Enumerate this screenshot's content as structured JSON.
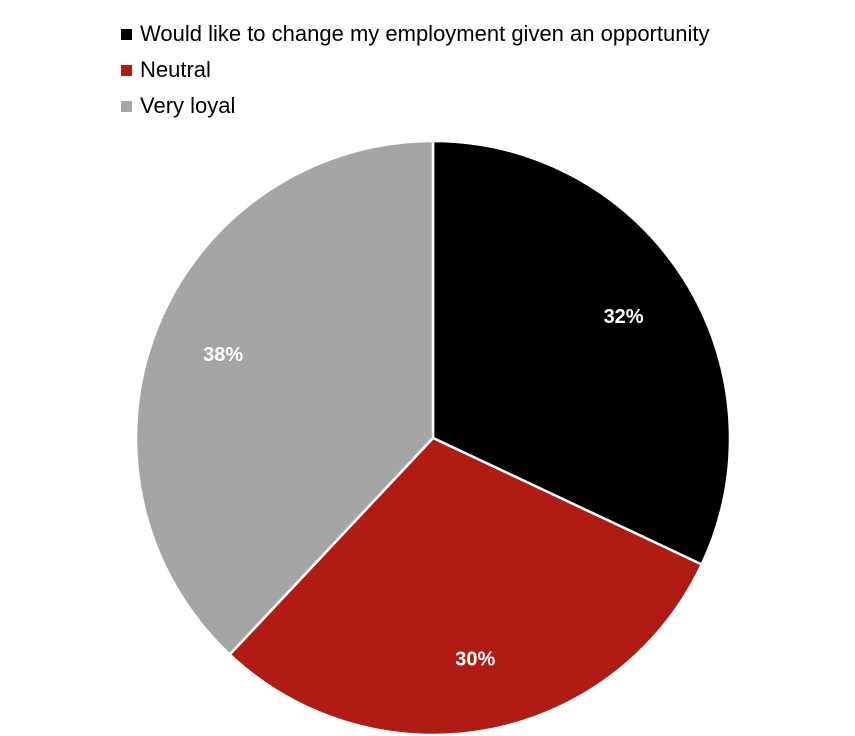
{
  "chart_data": {
    "type": "pie",
    "title": "",
    "legend_position": "top-left",
    "slices": [
      {
        "label": "Would like to change my employment given an opportunity",
        "value": 32,
        "value_label": "32%",
        "color": "#000000"
      },
      {
        "label": "Neutral",
        "value": 30,
        "value_label": "30%",
        "color": "#B01C14"
      },
      {
        "label": "Very loyal",
        "value": 38,
        "value_label": "38%",
        "color": "#A5A5A5"
      }
    ]
  }
}
